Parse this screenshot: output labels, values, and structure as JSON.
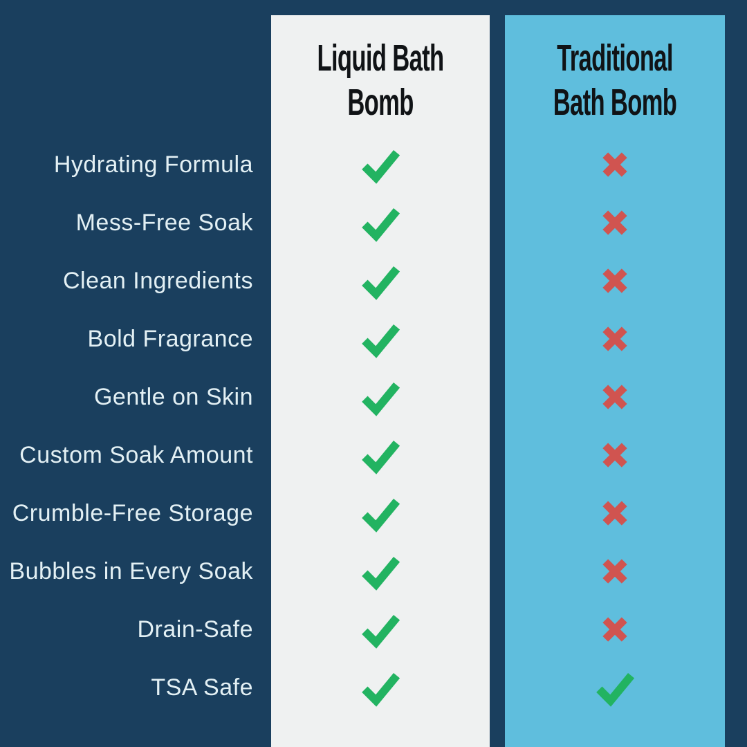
{
  "colors": {
    "background_navy": "#1a3f5e",
    "liquid_panel_bg": "#eff1f1",
    "traditional_panel_bg": "#5fbedd",
    "check_green": "#22b361",
    "cross_red": "#d05450",
    "label_text": "#e3f0f4",
    "header_text": "#101316"
  },
  "columns": [
    {
      "id": "liquid",
      "title": "Liquid Bath Bomb",
      "title_lines": [
        "Liquid Bath",
        "Bomb"
      ]
    },
    {
      "id": "traditional",
      "title": "Traditional Bath Bomb",
      "title_lines": [
        "Traditional",
        "Bath Bomb"
      ]
    }
  ],
  "icons": {
    "check": "check-icon",
    "cross": "cross-icon"
  },
  "rows": [
    {
      "label": "Hydrating Formula",
      "liquid": "check",
      "traditional": "cross"
    },
    {
      "label": "Mess-Free Soak",
      "liquid": "check",
      "traditional": "cross"
    },
    {
      "label": "Clean Ingredients",
      "liquid": "check",
      "traditional": "cross"
    },
    {
      "label": "Bold Fragrance",
      "liquid": "check",
      "traditional": "cross"
    },
    {
      "label": "Gentle on Skin",
      "liquid": "check",
      "traditional": "cross"
    },
    {
      "label": "Custom Soak Amount",
      "liquid": "check",
      "traditional": "cross"
    },
    {
      "label": "Crumble-Free Storage",
      "liquid": "check",
      "traditional": "cross"
    },
    {
      "label": "Bubbles in Every Soak",
      "liquid": "check",
      "traditional": "cross"
    },
    {
      "label": "Drain-Safe",
      "liquid": "check",
      "traditional": "cross"
    },
    {
      "label": "TSA Safe",
      "liquid": "check",
      "traditional": "check"
    }
  ],
  "chart_data": {
    "type": "table",
    "title": "Liquid Bath Bomb vs Traditional Bath Bomb",
    "categories": [
      "Hydrating Formula",
      "Mess-Free Soak",
      "Clean Ingredients",
      "Bold Fragrance",
      "Gentle on Skin",
      "Custom Soak Amount",
      "Crumble-Free Storage",
      "Bubbles in Every Soak",
      "Drain-Safe",
      "TSA Safe"
    ],
    "series": [
      {
        "name": "Liquid Bath Bomb",
        "values": [
          true,
          true,
          true,
          true,
          true,
          true,
          true,
          true,
          true,
          true
        ]
      },
      {
        "name": "Traditional Bath Bomb",
        "values": [
          false,
          false,
          false,
          false,
          false,
          false,
          false,
          false,
          false,
          true
        ]
      }
    ],
    "legend_position": "top",
    "value_glyphs": {
      "true": "green check",
      "false": "red cross"
    }
  }
}
